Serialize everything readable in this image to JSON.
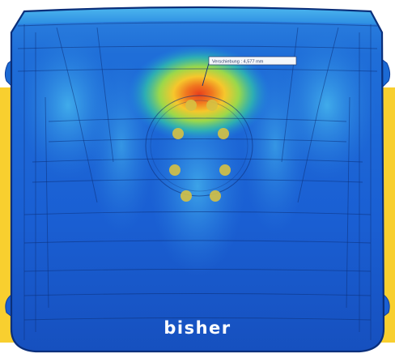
{
  "annotation": {
    "label": "Verschiebung : 4,577 mm"
  },
  "caption": "bisher",
  "colors": {
    "accent_band": "#f8cf2f",
    "panel_base": "#1a5fd3",
    "panel_edge": "#0e3e9c",
    "hotspot_core": "#e8401c",
    "hotspot_mid": "#f6c72c",
    "hotspot_outer": "#49d06a",
    "fastener_dots": "#d6c142"
  },
  "visual": {
    "subject": "stress-simulation color map of a vehicle body panel",
    "fastener_count": 8
  }
}
